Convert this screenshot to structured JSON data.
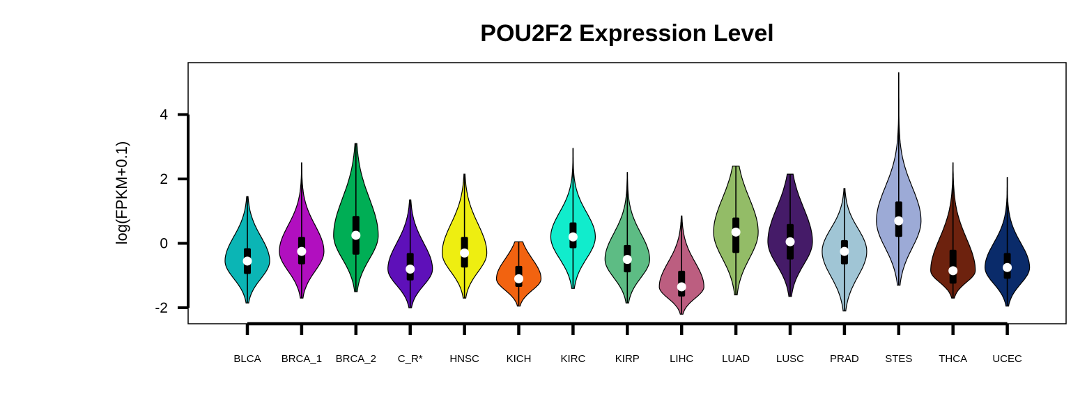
{
  "chart_data": {
    "type": "violin",
    "title": "POU2F2 Expression Level",
    "xlabel": "",
    "ylabel": "log(FPKM+0.1)",
    "ylim": [
      -2.5,
      5.5
    ],
    "yticks": [
      -2,
      0,
      2,
      4
    ],
    "grid": false,
    "legend": "none",
    "categories": [
      "BLCA",
      "BRCA_1",
      "BRCA_2",
      "C_R*",
      "HNSC",
      "KICH",
      "KIRC",
      "KIRP",
      "LIHC",
      "LUAD",
      "LUSC",
      "PRAD",
      "STES",
      "THCA",
      "UCEC"
    ],
    "colors": [
      "#0BB5B5",
      "#B10FBF",
      "#00AE55",
      "#5E10B9",
      "#EEEE11",
      "#F26310",
      "#11ECCC",
      "#5DBC84",
      "#BC5E80",
      "#93BC67",
      "#451B68",
      "#A0C5D5",
      "#9CAAD6",
      "#6D220E",
      "#0A2B6A"
    ],
    "series": [
      {
        "values": [
          {
            "min": -1.85,
            "q1": -0.95,
            "median": -0.55,
            "q3": -0.15,
            "max": 1.45
          },
          {
            "min": -1.7,
            "q1": -0.65,
            "median": -0.25,
            "q3": 0.2,
            "max": 2.5
          },
          {
            "min": -1.5,
            "q1": -0.35,
            "median": 0.25,
            "q3": 0.85,
            "max": 3.1
          },
          {
            "min": -2.0,
            "q1": -1.15,
            "median": -0.8,
            "q3": -0.3,
            "max": 1.35
          },
          {
            "min": -1.7,
            "q1": -0.75,
            "median": -0.3,
            "q3": 0.2,
            "max": 2.15
          },
          {
            "min": -1.95,
            "q1": -1.35,
            "median": -1.1,
            "q3": -0.7,
            "max": 0.05
          },
          {
            "min": -1.4,
            "q1": -0.15,
            "median": 0.2,
            "q3": 0.65,
            "max": 2.95
          },
          {
            "min": -1.85,
            "q1": -0.9,
            "median": -0.5,
            "q3": -0.05,
            "max": 2.2
          },
          {
            "min": -2.2,
            "q1": -1.65,
            "median": -1.35,
            "q3": -0.85,
            "max": 0.85
          },
          {
            "min": -1.6,
            "q1": -0.3,
            "median": 0.35,
            "q3": 0.8,
            "max": 2.4
          },
          {
            "min": -1.65,
            "q1": -0.5,
            "median": 0.05,
            "q3": 0.6,
            "max": 2.15
          },
          {
            "min": -2.1,
            "q1": -0.65,
            "median": -0.25,
            "q3": 0.1,
            "max": 1.7
          },
          {
            "min": -1.3,
            "q1": 0.2,
            "median": 0.7,
            "q3": 1.3,
            "max": 5.3
          },
          {
            "min": -1.7,
            "q1": -1.25,
            "median": -0.85,
            "q3": -0.2,
            "max": 2.5
          },
          {
            "min": -1.95,
            "q1": -1.1,
            "median": -0.75,
            "q3": -0.3,
            "max": 2.05
          }
        ]
      }
    ]
  }
}
